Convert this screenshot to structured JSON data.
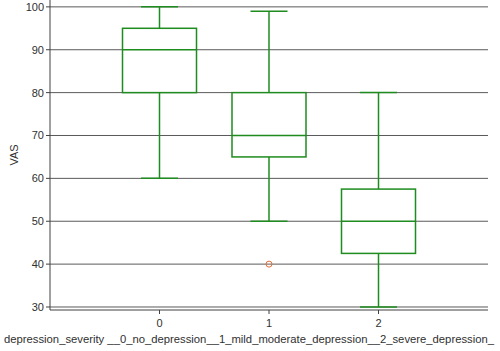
{
  "chart_data": {
    "type": "box",
    "x_label": "depression_severity __0_no_depression__1_mild_moderate_depression__2_severe_depression_",
    "y_label": "VAS",
    "categories": [
      "0",
      "1",
      "2"
    ],
    "boxes": [
      {
        "min": 60,
        "q1": 80,
        "median": 90,
        "q3": 95,
        "max": 100,
        "outliers": []
      },
      {
        "min": 50,
        "q1": 65,
        "median": 70,
        "q3": 80,
        "max": 99,
        "outliers": [
          40
        ]
      },
      {
        "min": 30,
        "q1": 42.5,
        "median": 50,
        "q3": 57.5,
        "max": 80,
        "outliers": []
      }
    ],
    "color": "#1e8c1e",
    "ylim": [
      29.3,
      101.6
    ],
    "yticks": [
      30,
      40,
      50,
      60,
      70,
      80,
      90,
      100
    ],
    "grid": true
  }
}
